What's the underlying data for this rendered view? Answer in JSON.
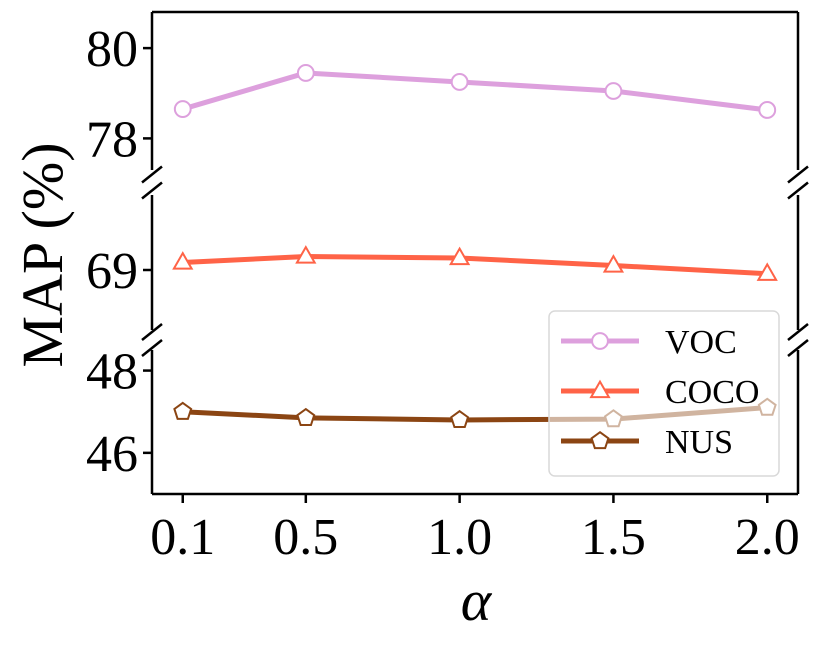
{
  "chart_data": {
    "type": "line",
    "title": "",
    "xlabel": "α",
    "ylabel": "MAP (%)",
    "x": [
      0.1,
      0.5,
      1.0,
      1.5,
      2.0
    ],
    "x_tick_labels": [
      "0.1",
      "0.5",
      "1.0",
      "1.5",
      "2.0"
    ],
    "broken_axis": true,
    "panels": [
      {
        "name": "top",
        "ylim": [
          77.3,
          80.8
        ],
        "yticks": [
          78,
          80
        ]
      },
      {
        "name": "middle",
        "ylim": [
          68.2,
          70.0
        ],
        "yticks": [
          69
        ]
      },
      {
        "name": "bottom",
        "ylim": [
          45.0,
          48.5
        ],
        "yticks": [
          46,
          48
        ]
      }
    ],
    "series": [
      {
        "name": "VOC",
        "panel": "top",
        "marker": "circle",
        "color": "#dda0dd",
        "values": [
          78.65,
          79.45,
          79.25,
          79.05,
          78.63
        ]
      },
      {
        "name": "COCO",
        "panel": "middle",
        "marker": "triangle",
        "color": "#ff6347",
        "values": [
          69.1,
          69.18,
          69.16,
          69.06,
          68.95
        ]
      },
      {
        "name": "NUS",
        "panel": "bottom",
        "marker": "pentagon",
        "color": "#8b4513",
        "values": [
          47.0,
          46.85,
          46.8,
          46.82,
          47.1
        ]
      }
    ],
    "legend": {
      "position": "lower-right",
      "entries": [
        "VOC",
        "COCO",
        "NUS"
      ]
    }
  }
}
